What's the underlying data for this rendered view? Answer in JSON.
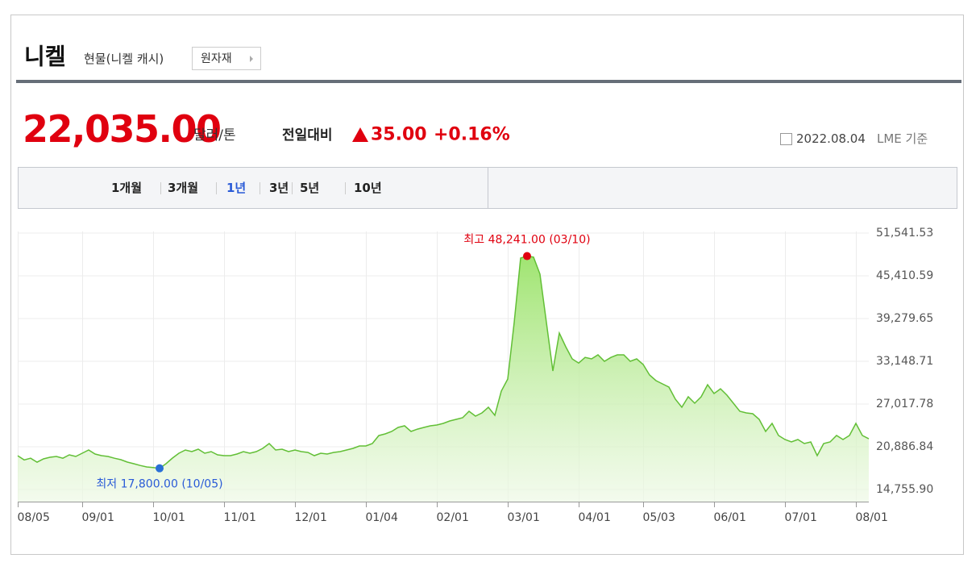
{
  "header": {
    "title": "니켈",
    "subtitle": "현물(니켈 캐시)",
    "button": "원자재"
  },
  "quote": {
    "price": "22,035.00",
    "unit": "달러/톤",
    "change_label": "전일대비",
    "change": "35.00",
    "change_pct": "+0.16%",
    "date": "2022.08.04",
    "basis": "LME 기준"
  },
  "tabs": [
    "1개월",
    "3개월",
    "1년",
    "3년",
    "5년",
    "10년"
  ],
  "chart_data": {
    "type": "area",
    "color": "#62bf36",
    "grid": true,
    "annotations": [
      "최고 48,241.00 (03/10)",
      "최저 17,800.00 (10/05)"
    ],
    "ylim": [
      13021,
      51773
    ],
    "yticks": [
      {
        "value": 14755.9,
        "label": "14,755.90"
      },
      {
        "value": 20886.84,
        "label": "20,886.84"
      },
      {
        "value": 27017.78,
        "label": "27,017.78"
      },
      {
        "value": 33148.71,
        "label": "33,148.71"
      },
      {
        "value": 39279.65,
        "label": "39,279.65"
      },
      {
        "value": 45410.59,
        "label": "45,410.59"
      },
      {
        "value": 51541.53,
        "label": "51,541.53"
      }
    ],
    "categories": [
      "08/05",
      null,
      null,
      null,
      null,
      null,
      null,
      null,
      null,
      null,
      "09/01",
      null,
      null,
      null,
      null,
      null,
      null,
      null,
      null,
      null,
      null,
      "10/01",
      null,
      null,
      null,
      null,
      null,
      null,
      null,
      null,
      null,
      null,
      "11/01",
      null,
      null,
      null,
      null,
      null,
      null,
      null,
      null,
      null,
      null,
      "12/01",
      null,
      null,
      null,
      null,
      null,
      null,
      null,
      null,
      null,
      null,
      "01/04",
      null,
      null,
      null,
      null,
      null,
      null,
      null,
      null,
      null,
      null,
      "02/01",
      null,
      null,
      null,
      null,
      null,
      null,
      null,
      null,
      null,
      null,
      "03/01",
      null,
      null,
      null,
      null,
      null,
      null,
      null,
      null,
      null,
      null,
      "04/01",
      null,
      null,
      null,
      null,
      null,
      null,
      null,
      null,
      null,
      "05/03",
      null,
      null,
      null,
      null,
      null,
      null,
      null,
      null,
      null,
      null,
      "06/01",
      null,
      null,
      null,
      null,
      null,
      null,
      null,
      null,
      null,
      null,
      "07/01",
      null,
      null,
      null,
      null,
      null,
      null,
      null,
      null,
      null,
      null,
      "08/01",
      null,
      null
    ],
    "values": [
      19600,
      19000,
      19250,
      18680,
      19150,
      19380,
      19500,
      19250,
      19730,
      19500,
      19960,
      20430,
      19850,
      19620,
      19500,
      19250,
      19040,
      18690,
      18460,
      18200,
      18000,
      17900,
      17800,
      18460,
      19270,
      19960,
      20430,
      20190,
      20540,
      19960,
      20190,
      19730,
      19620,
      19620,
      19850,
      20190,
      19960,
      20190,
      20650,
      21350,
      20420,
      20540,
      20190,
      20420,
      20190,
      20080,
      19620,
      19960,
      19850,
      20080,
      20190,
      20420,
      20650,
      21000,
      21000,
      21350,
      22500,
      22740,
      23080,
      23660,
      23900,
      23080,
      23420,
      23660,
      23900,
      24010,
      24240,
      24590,
      24820,
      25050,
      25980,
      25280,
      25740,
      26560,
      25400,
      28870,
      30600,
      38700,
      47960,
      48241,
      48100,
      45650,
      38700,
      31760,
      37200,
      35230,
      33500,
      32900,
      33700,
      33500,
      34070,
      33150,
      33700,
      34070,
      34070,
      33150,
      33500,
      32700,
      31180,
      30370,
      29910,
      29450,
      27710,
      26560,
      28060,
      27130,
      28060,
      29790,
      28520,
      29210,
      28290,
      27130,
      25980,
      25740,
      25630,
      24820,
      23080,
      24240,
      22510,
      21930,
      21580,
      21930,
      21350,
      21580,
      19620,
      21350,
      21580,
      22510,
      21930,
      22510,
      24240,
      22510,
      22035
    ]
  }
}
